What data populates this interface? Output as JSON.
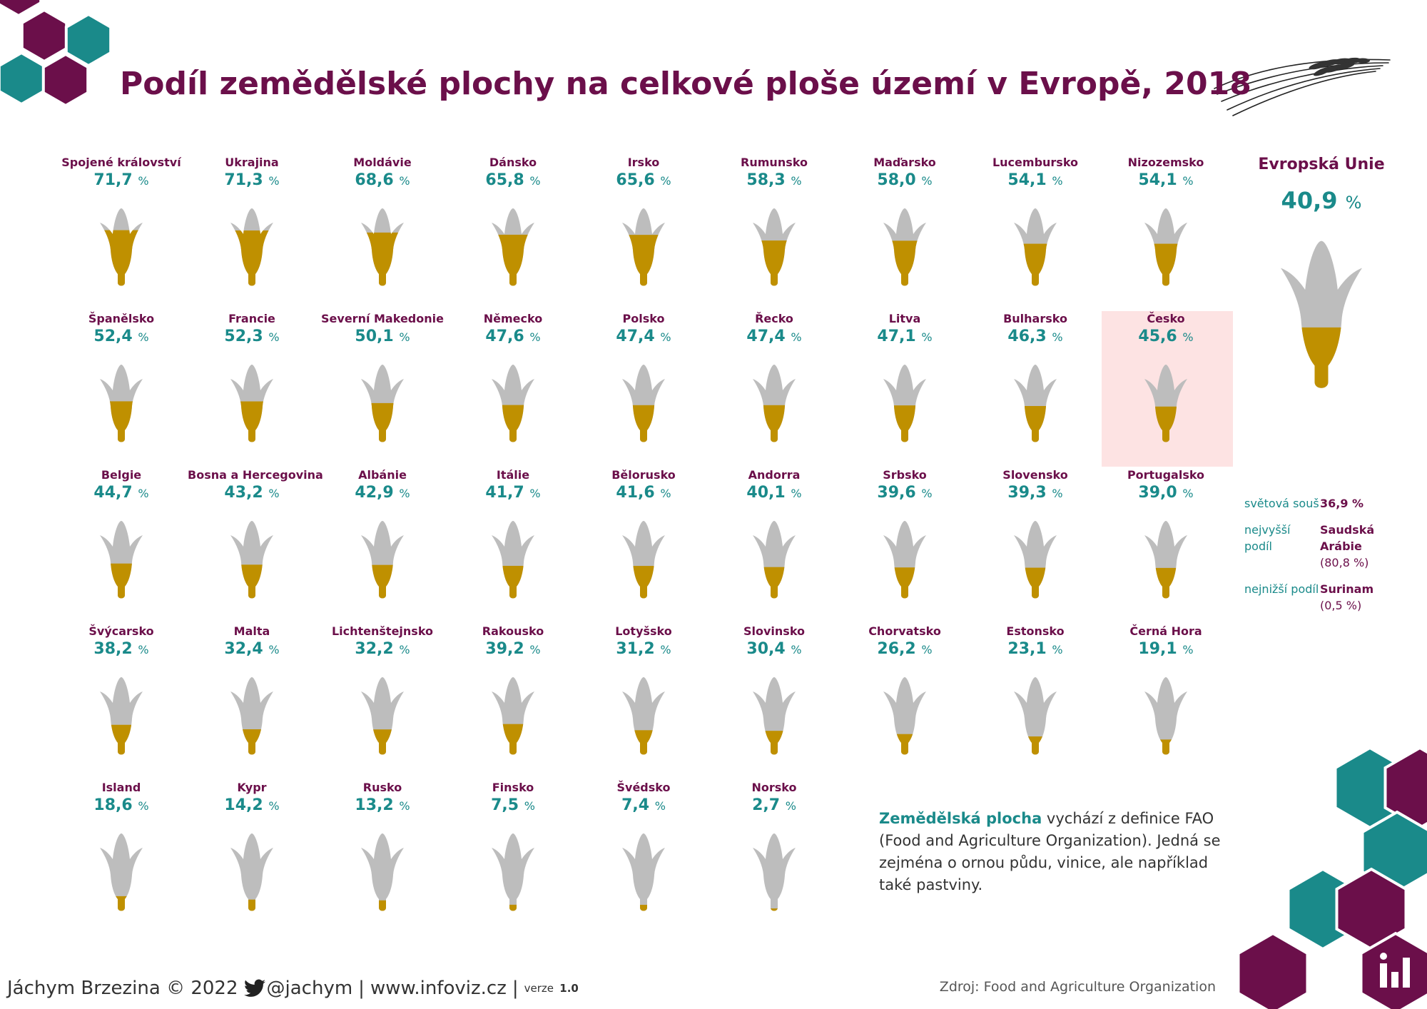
{
  "title": "Podíl zemědělské plochy na celkové ploše území v Evropě, 2018",
  "colors": {
    "filled": "#bf9000",
    "empty": "#bdbdbd",
    "purple": "#6b0f4a",
    "teal": "#1a8a8a",
    "highlight_bg": "#fde3e3"
  },
  "chart_data": {
    "type": "pictogram",
    "unit": "%",
    "value_range": [
      0,
      100
    ],
    "countries": [
      {
        "name": "Spojené království",
        "value": 71.7,
        "label": "71,7"
      },
      {
        "name": "Ukrajina",
        "value": 71.3,
        "label": "71,3"
      },
      {
        "name": "Moldávie",
        "value": 68.6,
        "label": "68,6"
      },
      {
        "name": "Dánsko",
        "value": 65.8,
        "label": "65,8"
      },
      {
        "name": "Irsko",
        "value": 65.6,
        "label": "65,6"
      },
      {
        "name": "Rumunsko",
        "value": 58.3,
        "label": "58,3"
      },
      {
        "name": "Maďarsko",
        "value": 58.0,
        "label": "58,0"
      },
      {
        "name": "Lucembursko",
        "value": 54.1,
        "label": "54,1"
      },
      {
        "name": "Nizozemsko",
        "value": 54.1,
        "label": "54,1"
      },
      {
        "name": "Španělsko",
        "value": 52.4,
        "label": "52,4"
      },
      {
        "name": "Francie",
        "value": 52.3,
        "label": "52,3"
      },
      {
        "name": "Severní Makedonie",
        "value": 50.1,
        "label": "50,1"
      },
      {
        "name": "Německo",
        "value": 47.6,
        "label": "47,6"
      },
      {
        "name": "Polsko",
        "value": 47.4,
        "label": "47,4"
      },
      {
        "name": "Řecko",
        "value": 47.4,
        "label": "47,4"
      },
      {
        "name": "Litva",
        "value": 47.1,
        "label": "47,1"
      },
      {
        "name": "Bulharsko",
        "value": 46.3,
        "label": "46,3"
      },
      {
        "name": "Česko",
        "value": 45.6,
        "label": "45,6",
        "highlight": true
      },
      {
        "name": "Belgie",
        "value": 44.7,
        "label": "44,7"
      },
      {
        "name": "Bosna a Hercegovina",
        "value": 43.2,
        "label": "43,2"
      },
      {
        "name": "Albánie",
        "value": 42.9,
        "label": "42,9"
      },
      {
        "name": "Itálie",
        "value": 41.7,
        "label": "41,7"
      },
      {
        "name": "Bělorusko",
        "value": 41.6,
        "label": "41,6"
      },
      {
        "name": "Andorra",
        "value": 40.1,
        "label": "40,1"
      },
      {
        "name": "Srbsko",
        "value": 39.6,
        "label": "39,6"
      },
      {
        "name": "Slovensko",
        "value": 39.3,
        "label": "39,3"
      },
      {
        "name": "Portugalsko",
        "value": 39.0,
        "label": "39,0"
      },
      {
        "name": "Švýcarsko",
        "value": 38.2,
        "label": "38,2"
      },
      {
        "name": "Malta",
        "value": 32.4,
        "label": "32,4"
      },
      {
        "name": "Lichtenštejnsko",
        "value": 32.2,
        "label": "32,2"
      },
      {
        "name": "Rakousko",
        "value": 39.2,
        "label": "39,2"
      },
      {
        "name": "Lotyšsko",
        "value": 31.2,
        "label": "31,2"
      },
      {
        "name": "Slovinsko",
        "value": 30.4,
        "label": "30,4"
      },
      {
        "name": "Chorvatsko",
        "value": 26.2,
        "label": "26,2"
      },
      {
        "name": "Estonsko",
        "value": 23.1,
        "label": "23,1"
      },
      {
        "name": "Černá Hora",
        "value": 19.1,
        "label": "19,1"
      },
      {
        "name": "Island",
        "value": 18.6,
        "label": "18,6"
      },
      {
        "name": "Kypr",
        "value": 14.2,
        "label": "14,2"
      },
      {
        "name": "Rusko",
        "value": 13.2,
        "label": "13,2"
      },
      {
        "name": "Finsko",
        "value": 7.5,
        "label": "7,5"
      },
      {
        "name": "Švédsko",
        "value": 7.4,
        "label": "7,4"
      },
      {
        "name": "Norsko",
        "value": 2.7,
        "label": "2,7"
      }
    ],
    "eu": {
      "name": "Evropská Unie",
      "value": 40.9,
      "label": "40,9"
    }
  },
  "stats": [
    {
      "label": "světová souš",
      "value": "36,9 %",
      "sub": ""
    },
    {
      "label": "nejvyšší podíl",
      "value": "Saudská Arábie",
      "sub": "(80,8 %)"
    },
    {
      "label": "nejnižší podíl",
      "value": "Surinam",
      "sub": "(0,5 %)"
    }
  ],
  "note": {
    "term": "Zemědělská plocha",
    "text": " vychází z definice FAO (Food and Agriculture Organization). Jedná se zejména o ornou půdu, vinice, ale například také pastviny."
  },
  "footer": {
    "author": "Jáchym Brzezina © 2022",
    "twitter": "@jachym",
    "separator": "|",
    "site_prefix": "www.",
    "site_main": "infoviz",
    "site_suffix": ".cz",
    "version_label": "verze",
    "version": "1.0"
  },
  "source": "Zdroj: Food and Agriculture Organization"
}
